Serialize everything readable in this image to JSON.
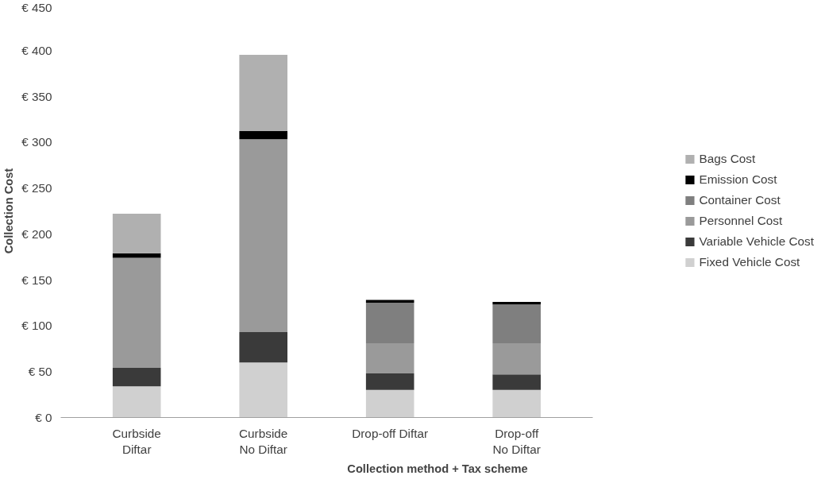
{
  "chart_data": {
    "type": "bar",
    "stacked": true,
    "xlabel": "Collection method + Tax scheme",
    "ylabel": "Collection Cost",
    "categories": [
      "Curbside\nDiftar",
      "Curbside\nNo Diftar",
      "Drop-off Diftar",
      "Drop-off\nNo Diftar"
    ],
    "series": [
      {
        "name": "Fixed Vehicle Cost",
        "color": "#d0d0d0",
        "values": [
          34,
          60,
          30,
          30
        ]
      },
      {
        "name": "Variable Vehicle Cost",
        "color": "#3a3a3a",
        "values": [
          20,
          33,
          18,
          17
        ]
      },
      {
        "name": "Personnel Cost",
        "color": "#9a9a9a",
        "values": [
          120,
          210,
          33,
          34
        ]
      },
      {
        "name": "Container Cost",
        "color": "#7f7f7f",
        "values": [
          0,
          0,
          44,
          42
        ]
      },
      {
        "name": "Emission Cost",
        "color": "#000000",
        "values": [
          5,
          9,
          3,
          3
        ]
      },
      {
        "name": "Bags Cost",
        "color": "#b0b0b0",
        "values": [
          43,
          83,
          0,
          0
        ]
      }
    ],
    "ylim": [
      0,
      450
    ],
    "yticks": [
      {
        "value": 0,
        "label": "€ 0"
      },
      {
        "value": 50,
        "label": "€ 50"
      },
      {
        "value": 100,
        "label": "€ 100"
      },
      {
        "value": 150,
        "label": "€ 150"
      },
      {
        "value": 200,
        "label": "€ 200"
      },
      {
        "value": 250,
        "label": "€ 250"
      },
      {
        "value": 300,
        "label": "€ 300"
      },
      {
        "value": 350,
        "label": "€ 350"
      },
      {
        "value": 400,
        "label": "€ 400"
      },
      {
        "value": 450,
        "label": "€ 450"
      }
    ],
    "legend": "right",
    "grid": false
  }
}
